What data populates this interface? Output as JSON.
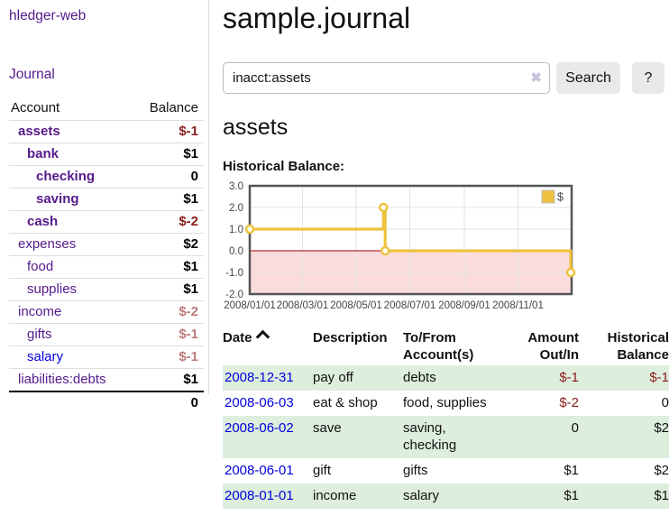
{
  "app": {
    "brand": "hledger-web",
    "nav_journal": "Journal"
  },
  "sidebar": {
    "header": {
      "account": "Account",
      "balance": "Balance"
    },
    "accounts": [
      {
        "name": "assets",
        "depth": 1,
        "bold": true,
        "link_color": "purple",
        "balance": "$-1",
        "balance_tone": "neg-strong"
      },
      {
        "name": "bank",
        "depth": 2,
        "bold": true,
        "link_color": "purple",
        "balance": "$1",
        "balance_tone": "pos"
      },
      {
        "name": "checking",
        "depth": 3,
        "bold": true,
        "link_color": "purple",
        "balance": "0",
        "balance_tone": "pos"
      },
      {
        "name": "saving",
        "depth": 3,
        "bold": true,
        "link_color": "purple",
        "balance": "$1",
        "balance_tone": "pos"
      },
      {
        "name": "cash",
        "depth": 2,
        "bold": true,
        "link_color": "purple",
        "balance": "$-2",
        "balance_tone": "neg-strong"
      },
      {
        "name": "expenses",
        "depth": 1,
        "bold": false,
        "link_color": "purple",
        "balance": "$2",
        "balance_tone": "pos"
      },
      {
        "name": "food",
        "depth": 2,
        "bold": false,
        "link_color": "purple",
        "balance": "$1",
        "balance_tone": "pos"
      },
      {
        "name": "supplies",
        "depth": 2,
        "bold": false,
        "link_color": "purple",
        "balance": "$1",
        "balance_tone": "pos"
      },
      {
        "name": "income",
        "depth": 1,
        "bold": false,
        "link_color": "purple",
        "balance": "$-2",
        "balance_tone": "neg-soft"
      },
      {
        "name": "gifts",
        "depth": 2,
        "bold": false,
        "link_color": "purple",
        "balance": "$-1",
        "balance_tone": "neg-soft"
      },
      {
        "name": "salary",
        "depth": 2,
        "bold": false,
        "link_color": "blue",
        "balance": "$-1",
        "balance_tone": "neg-soft"
      },
      {
        "name": "liabilities:debts",
        "depth": 1,
        "bold": false,
        "link_color": "purple",
        "balance": "$1",
        "balance_tone": "pos"
      }
    ],
    "total": "0"
  },
  "main": {
    "title": "sample.journal",
    "account_heading": "assets"
  },
  "search": {
    "value": "inacct:assets",
    "clear_icon": "✖",
    "button_label": "Search",
    "help_label": "?"
  },
  "chart_data": {
    "type": "line",
    "step": true,
    "title": "Historical Balance:",
    "x_type": "date",
    "x_range": [
      "2008-01-01",
      "2009-01-01"
    ],
    "ylim": [
      -2,
      3
    ],
    "yticks": [
      "3.0",
      "2.0",
      "1.0",
      "0.0",
      "-1.0",
      "-2.0"
    ],
    "xticks": [
      {
        "date": "2008-01-01",
        "label": "2008/01/01"
      },
      {
        "date": "2008-03-01",
        "label": "2008/03/01"
      },
      {
        "date": "2008-05-01",
        "label": "2008/05/01"
      },
      {
        "date": "2008-07-01",
        "label": "2008/07/01"
      },
      {
        "date": "2008-09-01",
        "label": "2008/09/01"
      },
      {
        "date": "2008-11-01",
        "label": "2008/11/01"
      }
    ],
    "series": [
      {
        "name": "$",
        "color": "#EDC240",
        "points": [
          {
            "date": "2008-01-01",
            "value": 1
          },
          {
            "date": "2008-06-01",
            "value": 2
          },
          {
            "date": "2008-06-03",
            "value": 0
          },
          {
            "date": "2008-12-31",
            "value": -1
          }
        ]
      }
    ],
    "legend": {
      "label": "$",
      "position": "top-right"
    },
    "grid": true,
    "negative_region_fill": "#fbdcdc",
    "zero_line_color": "#a40000",
    "grid_color": "#e3e3e3",
    "border_color": "#545454",
    "tick_color": "#444444"
  },
  "register": {
    "headers": {
      "date": "Date",
      "description": "Description",
      "accounts": "To/From Account(s)",
      "amount": "Amount Out/In",
      "balance": "Historical Balance"
    },
    "rows": [
      {
        "date": "2008-12-31",
        "description": "pay off",
        "accounts": [
          "debts"
        ],
        "amount": "$-1",
        "amount_neg": true,
        "balance": "$-1",
        "balance_neg": true
      },
      {
        "date": "2008-06-03",
        "description": "eat & shop",
        "accounts": [
          "food, supplies"
        ],
        "amount": "$-2",
        "amount_neg": true,
        "balance": "0",
        "balance_neg": false
      },
      {
        "date": "2008-06-02",
        "description": "save",
        "accounts": [
          "saving,",
          "checking"
        ],
        "amount": "0",
        "amount_neg": false,
        "balance": "$2",
        "balance_neg": false
      },
      {
        "date": "2008-06-01",
        "description": "gift",
        "accounts": [
          "gifts"
        ],
        "amount": "$1",
        "amount_neg": false,
        "balance": "$2",
        "balance_neg": false
      },
      {
        "date": "2008-01-01",
        "description": "income",
        "accounts": [
          "salary"
        ],
        "amount": "$1",
        "amount_neg": false,
        "balance": "$1",
        "balance_neg": false
      }
    ]
  },
  "colors": {
    "link_purple": "#551a8b",
    "link_blue": "#0000dd",
    "negative_strong": "#8b1c1c",
    "negative_soft": "#bd7b7b",
    "stripe_green": "#ddeedd",
    "accent_yellow": "#EDC240"
  }
}
